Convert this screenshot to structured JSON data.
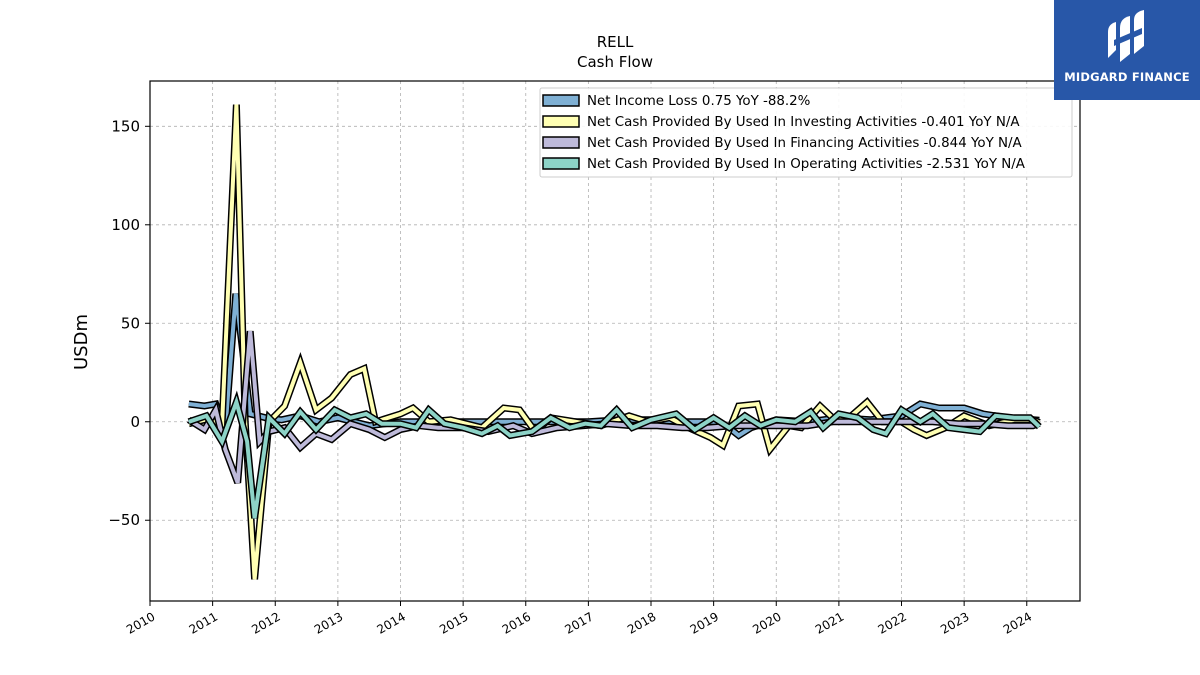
{
  "brand": {
    "name": "MIDGARD FINANCE",
    "color": "#2857a8"
  },
  "chart_data": {
    "type": "line",
    "title": "RELL",
    "subtitle": "Cash Flow",
    "xlabel": "",
    "ylabel": "USDm",
    "xlim": [
      2010.0,
      2024.85
    ],
    "ylim": [
      -91,
      173
    ],
    "yticks": [
      -50,
      0,
      50,
      100,
      150
    ],
    "ytick_labels": [
      "−50",
      "0",
      "50",
      "100",
      "150"
    ],
    "xticks": [
      "2010",
      "2011",
      "2012",
      "2013",
      "2014",
      "2015",
      "2016",
      "2017",
      "2018",
      "2019",
      "2020",
      "2021",
      "2022",
      "2023",
      "2024"
    ],
    "grid": true,
    "legend_position": "top-right",
    "series": [
      {
        "name": "Net Income Loss  0.75 YoY -88.2%",
        "color": "#7fb0d4",
        "points": [
          [
            2010.62,
            9
          ],
          [
            2010.87,
            8
          ],
          [
            2011.05,
            9
          ],
          [
            2011.2,
            -5
          ],
          [
            2011.37,
            65
          ],
          [
            2011.6,
            4
          ],
          [
            2011.85,
            2
          ],
          [
            2012.1,
            1
          ],
          [
            2012.4,
            3
          ],
          [
            2012.7,
            0
          ],
          [
            2013.0,
            2
          ],
          [
            2013.5,
            -2
          ],
          [
            2014.0,
            0
          ],
          [
            2014.5,
            0
          ],
          [
            2015.0,
            0
          ],
          [
            2015.5,
            0
          ],
          [
            2016.0,
            0
          ],
          [
            2016.5,
            0
          ],
          [
            2017.0,
            0
          ],
          [
            2017.5,
            1
          ],
          [
            2018.0,
            1
          ],
          [
            2018.5,
            0
          ],
          [
            2019.0,
            0
          ],
          [
            2019.2,
            -2
          ],
          [
            2019.4,
            -7
          ],
          [
            2019.6,
            -3
          ],
          [
            2020.0,
            1
          ],
          [
            2020.5,
            0
          ],
          [
            2021.0,
            2
          ],
          [
            2021.5,
            1
          ],
          [
            2022.0,
            3
          ],
          [
            2022.3,
            9
          ],
          [
            2022.6,
            7
          ],
          [
            2023.0,
            7
          ],
          [
            2023.3,
            4
          ],
          [
            2023.7,
            2
          ],
          [
            2024.2,
            0.75
          ]
        ]
      },
      {
        "name": "Net Cash Provided By Used In Investing Activities  -0.401 YoY N/A",
        "color": "#ffffb3",
        "points": [
          [
            2010.62,
            -1
          ],
          [
            2010.87,
            1
          ],
          [
            2011.05,
            0
          ],
          [
            2011.15,
            -2
          ],
          [
            2011.38,
            161
          ],
          [
            2011.52,
            0
          ],
          [
            2011.67,
            -80
          ],
          [
            2011.9,
            0
          ],
          [
            2012.15,
            8
          ],
          [
            2012.4,
            30
          ],
          [
            2012.65,
            6
          ],
          [
            2012.9,
            12
          ],
          [
            2013.2,
            24
          ],
          [
            2013.42,
            27
          ],
          [
            2013.6,
            0
          ],
          [
            2014.0,
            4
          ],
          [
            2014.2,
            7
          ],
          [
            2014.45,
            0
          ],
          [
            2014.8,
            1
          ],
          [
            2015.3,
            -3
          ],
          [
            2015.65,
            7
          ],
          [
            2015.9,
            6
          ],
          [
            2016.15,
            -5
          ],
          [
            2016.4,
            2
          ],
          [
            2016.8,
            0
          ],
          [
            2017.2,
            -2
          ],
          [
            2017.65,
            3
          ],
          [
            2017.95,
            0
          ],
          [
            2018.3,
            2
          ],
          [
            2018.6,
            -3
          ],
          [
            2018.95,
            -8
          ],
          [
            2019.15,
            -12
          ],
          [
            2019.4,
            8
          ],
          [
            2019.7,
            9
          ],
          [
            2019.9,
            -14
          ],
          [
            2020.2,
            -2
          ],
          [
            2020.4,
            -3
          ],
          [
            2020.7,
            8
          ],
          [
            2020.9,
            2
          ],
          [
            2021.2,
            3
          ],
          [
            2021.45,
            10
          ],
          [
            2021.7,
            0
          ],
          [
            2022.0,
            0
          ],
          [
            2022.2,
            -4
          ],
          [
            2022.4,
            -7
          ],
          [
            2022.7,
            -3
          ],
          [
            2023.0,
            3
          ],
          [
            2023.4,
            -2
          ],
          [
            2023.8,
            1
          ],
          [
            2024.1,
            1
          ],
          [
            2024.2,
            -0.4
          ]
        ]
      },
      {
        "name": "Net Cash Provided By Used In Financing Activities  -0.844 YoY N/A",
        "color": "#bebada",
        "points": [
          [
            2010.62,
            1
          ],
          [
            2010.87,
            -4
          ],
          [
            2011.05,
            6
          ],
          [
            2011.2,
            -14
          ],
          [
            2011.4,
            -31
          ],
          [
            2011.6,
            46
          ],
          [
            2011.75,
            -10
          ],
          [
            2011.9,
            -5
          ],
          [
            2012.15,
            -3
          ],
          [
            2012.4,
            -13
          ],
          [
            2012.65,
            -6
          ],
          [
            2012.9,
            -9
          ],
          [
            2013.2,
            -1
          ],
          [
            2013.5,
            -4
          ],
          [
            2013.75,
            -8
          ],
          [
            2014.0,
            -4
          ],
          [
            2014.3,
            -2
          ],
          [
            2014.6,
            -3
          ],
          [
            2015.0,
            -3
          ],
          [
            2015.4,
            -5
          ],
          [
            2015.8,
            -2
          ],
          [
            2016.1,
            -6
          ],
          [
            2016.5,
            -3
          ],
          [
            2016.9,
            -2
          ],
          [
            2017.3,
            -1
          ],
          [
            2017.7,
            -2
          ],
          [
            2018.1,
            -2
          ],
          [
            2018.5,
            -3
          ],
          [
            2018.9,
            -3
          ],
          [
            2019.3,
            -2
          ],
          [
            2019.7,
            -2
          ],
          [
            2020.1,
            -2
          ],
          [
            2020.5,
            -2
          ],
          [
            2020.9,
            0
          ],
          [
            2021.3,
            0
          ],
          [
            2021.7,
            0
          ],
          [
            2022.1,
            0
          ],
          [
            2022.5,
            0
          ],
          [
            2022.9,
            -1
          ],
          [
            2023.3,
            -1
          ],
          [
            2023.7,
            -2
          ],
          [
            2024.1,
            -2
          ],
          [
            2024.2,
            -0.8
          ]
        ]
      },
      {
        "name": "Net Cash Provided By Used In Operating Activities  -2.531 YoY N/A",
        "color": "#8dd3c7",
        "points": [
          [
            2010.62,
            0
          ],
          [
            2010.9,
            3
          ],
          [
            2011.15,
            -10
          ],
          [
            2011.38,
            10
          ],
          [
            2011.55,
            -10
          ],
          [
            2011.67,
            -49
          ],
          [
            2011.9,
            2
          ],
          [
            2012.15,
            -6
          ],
          [
            2012.4,
            5
          ],
          [
            2012.65,
            -4
          ],
          [
            2012.95,
            6
          ],
          [
            2013.2,
            2
          ],
          [
            2013.45,
            4
          ],
          [
            2013.7,
            -1
          ],
          [
            2014.0,
            -1
          ],
          [
            2014.25,
            -3
          ],
          [
            2014.45,
            6
          ],
          [
            2014.7,
            -1
          ],
          [
            2015.0,
            -3
          ],
          [
            2015.3,
            -6
          ],
          [
            2015.55,
            -2
          ],
          [
            2015.75,
            -7
          ],
          [
            2016.1,
            -5
          ],
          [
            2016.4,
            2
          ],
          [
            2016.7,
            -3
          ],
          [
            2016.95,
            -1
          ],
          [
            2017.2,
            -2
          ],
          [
            2017.45,
            6
          ],
          [
            2017.7,
            -3
          ],
          [
            2018.0,
            1
          ],
          [
            2018.4,
            4
          ],
          [
            2018.7,
            -4
          ],
          [
            2019.0,
            2
          ],
          [
            2019.25,
            -3
          ],
          [
            2019.5,
            3
          ],
          [
            2019.75,
            -2
          ],
          [
            2020.0,
            1
          ],
          [
            2020.3,
            0
          ],
          [
            2020.55,
            5
          ],
          [
            2020.75,
            -3
          ],
          [
            2021.0,
            4
          ],
          [
            2021.3,
            2
          ],
          [
            2021.55,
            -4
          ],
          [
            2021.75,
            -6
          ],
          [
            2022.0,
            6
          ],
          [
            2022.3,
            0
          ],
          [
            2022.5,
            4
          ],
          [
            2022.75,
            -3
          ],
          [
            2023.0,
            -4
          ],
          [
            2023.25,
            -5
          ],
          [
            2023.5,
            3
          ],
          [
            2023.8,
            2
          ],
          [
            2024.05,
            2
          ],
          [
            2024.2,
            -2.5
          ]
        ]
      }
    ]
  }
}
